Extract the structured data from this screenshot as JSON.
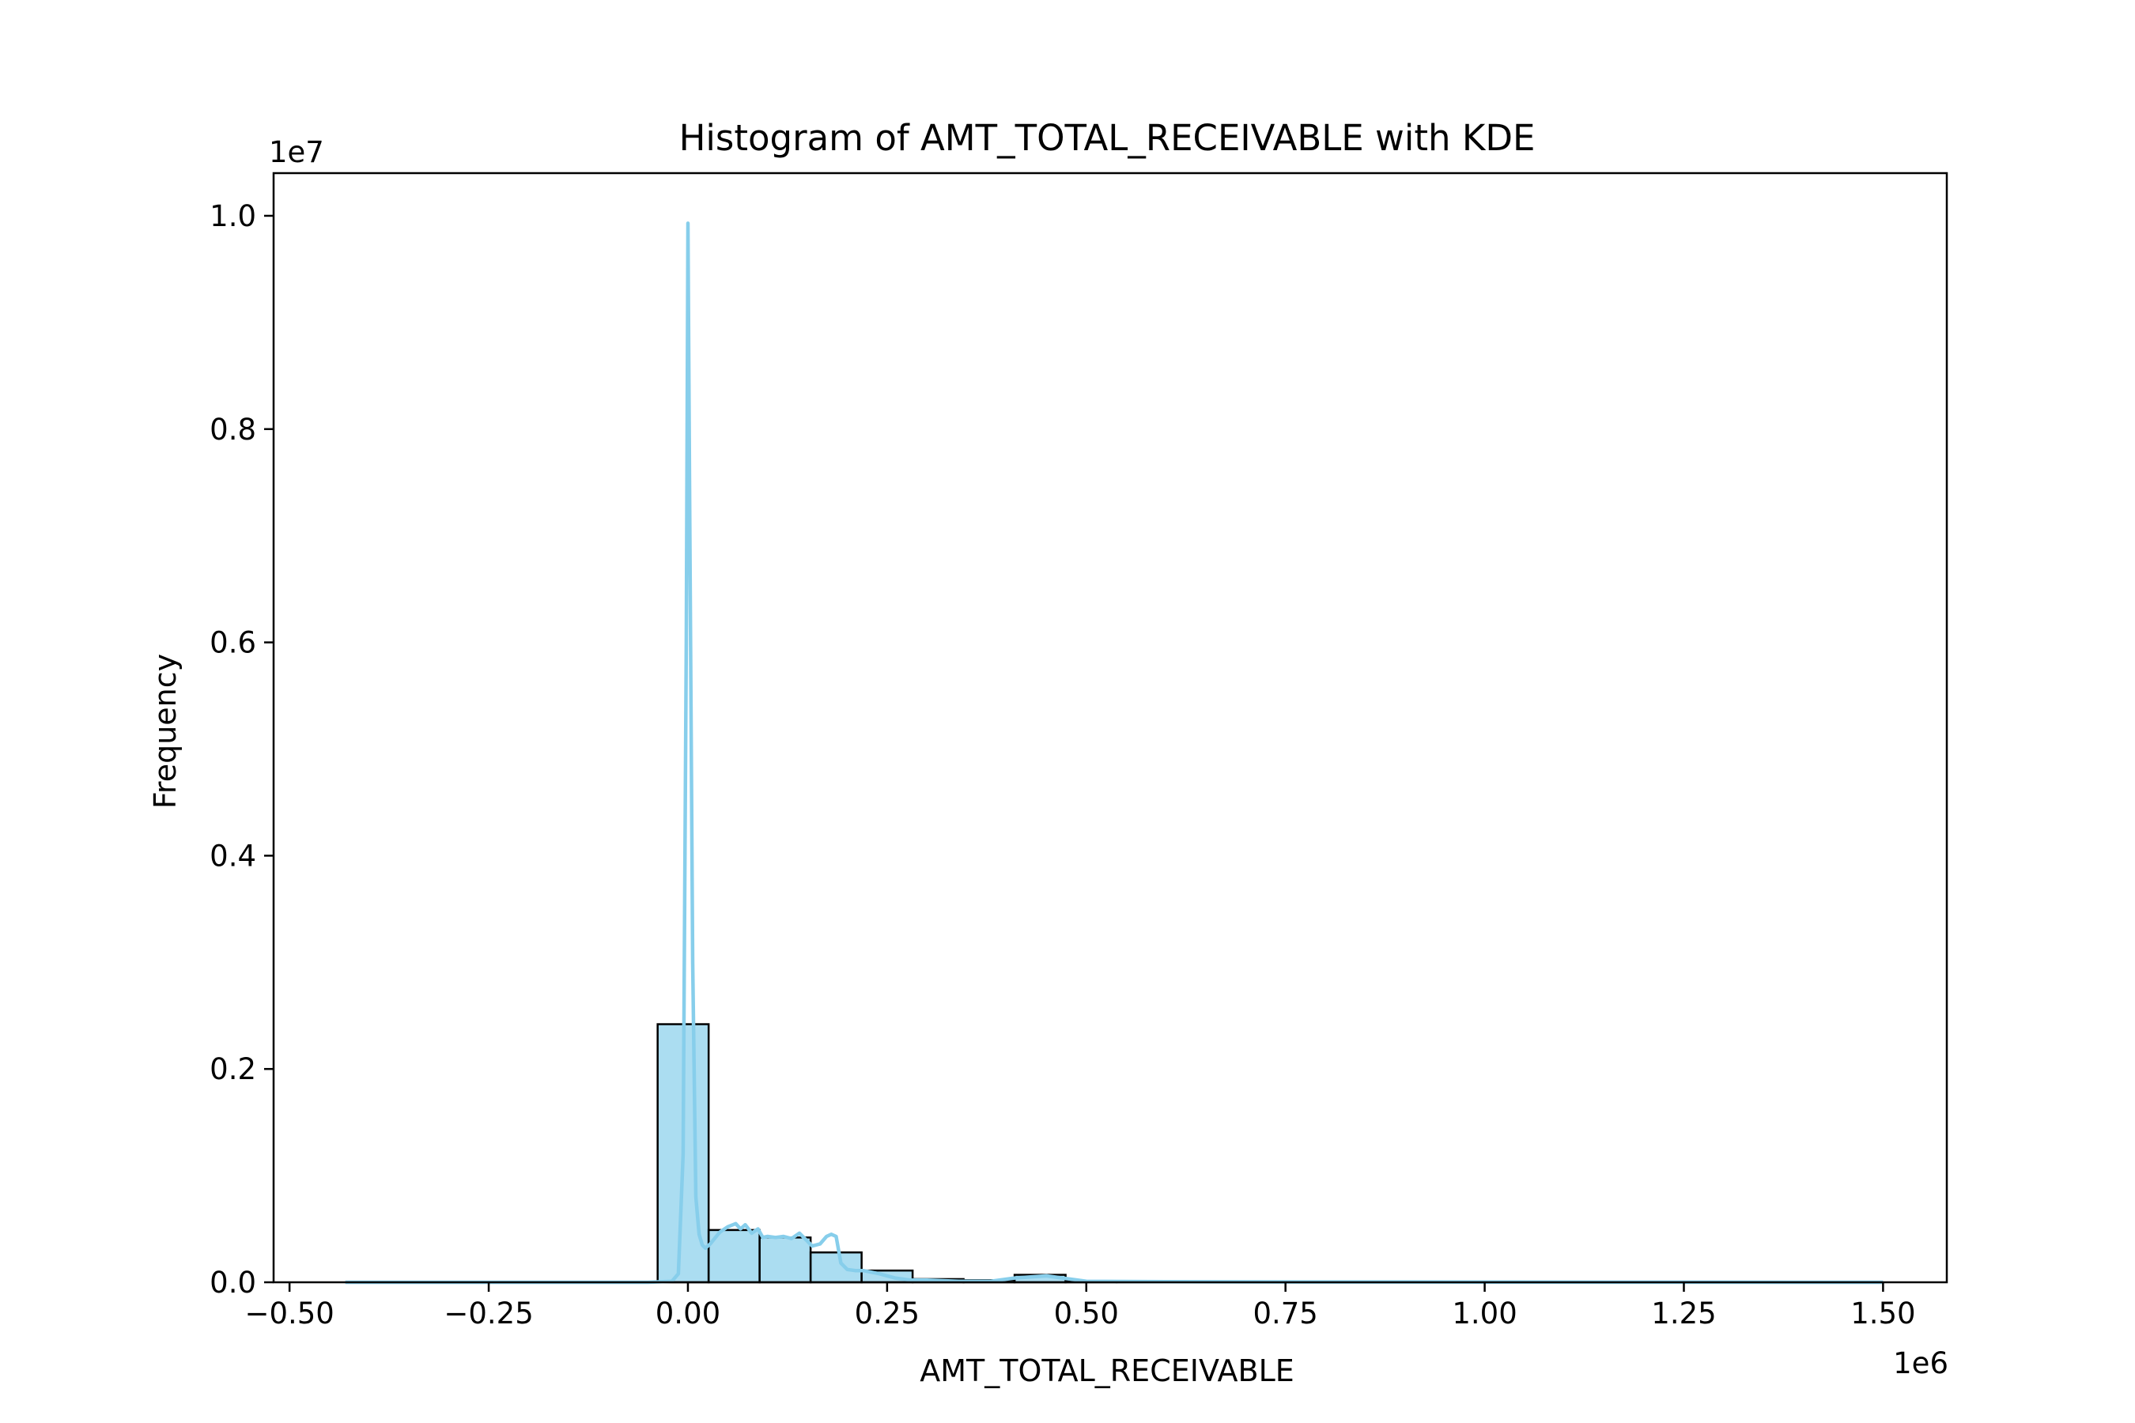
{
  "chart_data": {
    "type": "bar",
    "title": "Histogram of AMT_TOTAL_RECEIVABLE with KDE",
    "xlabel": "AMT_TOTAL_RECEIVABLE",
    "ylabel": "Frequency",
    "x_offset_label": "1e6",
    "y_offset_label": "1e7",
    "xlim": [
      -0.52,
      1.58
    ],
    "ylim": [
      0,
      1.04
    ],
    "x_ticks": [
      -0.5,
      -0.25,
      0.0,
      0.25,
      0.5,
      0.75,
      1.0,
      1.25,
      1.5
    ],
    "x_tick_labels": [
      "−0.50",
      "−0.25",
      "0.00",
      "0.25",
      "0.50",
      "0.75",
      "1.00",
      "1.25",
      "1.50"
    ],
    "y_ticks": [
      0.0,
      0.2,
      0.4,
      0.6,
      0.8,
      1.0
    ],
    "y_tick_labels": [
      "0.0",
      "0.2",
      "0.4",
      "0.6",
      "0.8",
      "1.0"
    ],
    "grid": false,
    "colors": {
      "bar_fill": "#87ceeb",
      "bar_edge": "#000000",
      "kde_line": "#87ceeb"
    },
    "bins": [
      {
        "x0": -0.038,
        "x1": 0.026,
        "value": 0.242
      },
      {
        "x0": 0.026,
        "x1": 0.09,
        "value": 0.049
      },
      {
        "x0": 0.09,
        "x1": 0.154,
        "value": 0.042
      },
      {
        "x0": 0.154,
        "x1": 0.218,
        "value": 0.028
      },
      {
        "x0": 0.218,
        "x1": 0.282,
        "value": 0.011
      },
      {
        "x0": 0.282,
        "x1": 0.346,
        "value": 0.003
      },
      {
        "x0": 0.346,
        "x1": 0.41,
        "value": 0.002
      },
      {
        "x0": 0.41,
        "x1": 0.474,
        "value": 0.007
      },
      {
        "x0": 0.474,
        "x1": 0.538,
        "value": 0.001
      },
      {
        "x0": 0.538,
        "x1": 0.602,
        "value": 0.0005
      },
      {
        "x0": 0.602,
        "x1": 0.666,
        "value": 0.0003
      },
      {
        "x0": 0.666,
        "x1": 0.73,
        "value": 0.0003
      },
      {
        "x0": 0.73,
        "x1": 0.794,
        "value": 0.0002
      },
      {
        "x0": 0.794,
        "x1": 0.858,
        "value": 0.0002
      },
      {
        "x0": 0.858,
        "x1": 0.922,
        "value": 0.0001
      },
      {
        "x0": 0.922,
        "x1": 0.986,
        "value": 0.0001
      },
      {
        "x0": 0.986,
        "x1": 1.05,
        "value": 0.0001
      },
      {
        "x0": 1.05,
        "x1": 1.114,
        "value": 0.0001
      },
      {
        "x0": 1.114,
        "x1": 1.178,
        "value": 0.0001
      },
      {
        "x0": 1.178,
        "x1": 1.242,
        "value": 0.0001
      },
      {
        "x0": 1.242,
        "x1": 1.306,
        "value": 0.0001
      },
      {
        "x0": 1.306,
        "x1": 1.37,
        "value": 0.0001
      },
      {
        "x0": 1.37,
        "x1": 1.434,
        "value": 0.0001
      },
      {
        "x0": 1.434,
        "x1": 1.498,
        "value": 0.0001
      }
    ],
    "kde": {
      "x": [
        -0.43,
        -0.2,
        -0.05,
        -0.02,
        -0.012,
        -0.006,
        -0.002,
        0.0,
        0.002,
        0.006,
        0.01,
        0.014,
        0.018,
        0.022,
        0.028,
        0.04,
        0.05,
        0.06,
        0.066,
        0.072,
        0.08,
        0.088,
        0.094,
        0.1,
        0.11,
        0.12,
        0.13,
        0.14,
        0.148,
        0.156,
        0.166,
        0.174,
        0.18,
        0.186,
        0.192,
        0.2,
        0.21,
        0.22,
        0.24,
        0.26,
        0.28,
        0.3,
        0.34,
        0.38,
        0.41,
        0.43,
        0.45,
        0.47,
        0.5,
        0.6,
        0.8,
        1.0,
        1.25,
        1.5
      ],
      "y": [
        0.0,
        0.0,
        0.0,
        0.001,
        0.008,
        0.12,
        0.6,
        0.993,
        0.75,
        0.3,
        0.08,
        0.045,
        0.035,
        0.032,
        0.036,
        0.047,
        0.052,
        0.055,
        0.05,
        0.054,
        0.046,
        0.05,
        0.042,
        0.043,
        0.042,
        0.043,
        0.041,
        0.046,
        0.04,
        0.034,
        0.036,
        0.043,
        0.045,
        0.043,
        0.018,
        0.012,
        0.011,
        0.011,
        0.008,
        0.004,
        0.002,
        0.002,
        0.001,
        0.001,
        0.004,
        0.005,
        0.006,
        0.004,
        0.001,
        0.0005,
        0.0003,
        0.0002,
        0.0001,
        0.0
      ]
    }
  }
}
